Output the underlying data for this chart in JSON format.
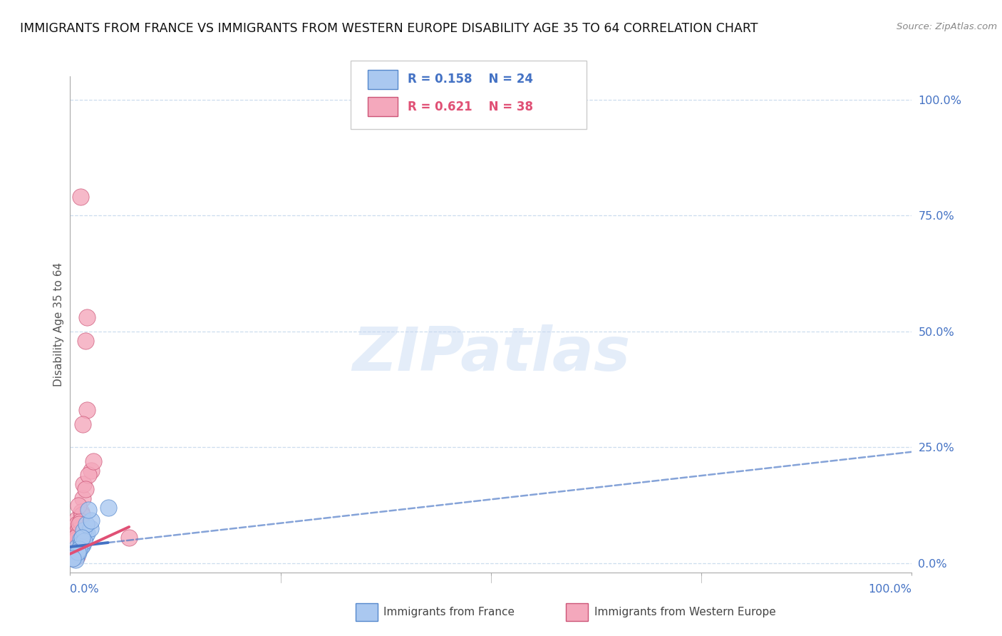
{
  "title": "IMMIGRANTS FROM FRANCE VS IMMIGRANTS FROM WESTERN EUROPE DISABILITY AGE 35 TO 64 CORRELATION CHART",
  "source": "Source: ZipAtlas.com",
  "ylabel": "Disability Age 35 to 64",
  "watermark": "ZIPatlas",
  "france_R": 0.158,
  "france_N": 24,
  "western_R": 0.621,
  "western_N": 38,
  "ytick_values": [
    0,
    25,
    50,
    75,
    100
  ],
  "xlim": [
    0,
    100
  ],
  "ylim": [
    -2,
    105
  ],
  "france_color": "#aac8f0",
  "france_edge": "#5588cc",
  "france_line": "#4472c4",
  "western_color": "#f4a8bc",
  "western_edge": "#cc5577",
  "western_line": "#e05075",
  "bg_color": "#ffffff",
  "grid_color": "#ccddee",
  "title_color": "#111111",
  "axis_color": "#4472c4",
  "source_color": "#888888",
  "legend_text_france_color": "#4472c4",
  "legend_text_western_color": "#e05075",
  "france_scatter_x": [
    0.8,
    1.2,
    1.5,
    0.5,
    1.0,
    1.8,
    2.0,
    1.3,
    0.7,
    1.6,
    2.4,
    1.0,
    0.4,
    1.9,
    2.5,
    1.3,
    1.7,
    0.6,
    2.2,
    1.1,
    0.9,
    1.4,
    4.5,
    0.3
  ],
  "france_scatter_y": [
    3.5,
    5.2,
    4.0,
    2.0,
    2.8,
    5.8,
    6.5,
    4.2,
    1.5,
    7.0,
    7.5,
    2.2,
    1.2,
    8.5,
    9.2,
    3.5,
    4.8,
    0.8,
    11.5,
    3.0,
    2.5,
    5.5,
    12.0,
    1.0
  ],
  "western_scatter_x": [
    0.5,
    0.8,
    1.0,
    0.4,
    1.2,
    1.5,
    0.7,
    0.9,
    1.3,
    1.8,
    0.6,
    1.6,
    0.5,
    2.0,
    2.5,
    0.8,
    1.1,
    0.4,
    1.4,
    2.0,
    0.9,
    0.5,
    1.5,
    1.0,
    0.7,
    2.2,
    0.4,
    0.8,
    1.2,
    2.8,
    1.0,
    0.6,
    1.8,
    1.1,
    7.0,
    1.4,
    0.8,
    0.3
  ],
  "western_scatter_y": [
    5.0,
    9.5,
    8.0,
    3.0,
    79.0,
    14.0,
    4.5,
    2.5,
    11.0,
    48.0,
    6.5,
    17.0,
    2.0,
    53.0,
    20.0,
    8.5,
    4.0,
    3.5,
    10.5,
    33.0,
    7.0,
    2.2,
    30.0,
    6.5,
    5.0,
    19.0,
    3.2,
    2.8,
    9.0,
    22.0,
    12.5,
    5.5,
    16.0,
    8.5,
    5.5,
    4.5,
    1.5,
    1.0
  ],
  "france_line_x0": 0,
  "france_line_y0": 3.5,
  "france_line_x1": 100,
  "france_line_y1": 24.0,
  "france_solid_xmax": 4.5,
  "western_line_x0": 0,
  "western_line_y0": 2.0,
  "western_line_x1": 100,
  "western_line_y1": 85.0,
  "western_solid_xmax": 7.0
}
